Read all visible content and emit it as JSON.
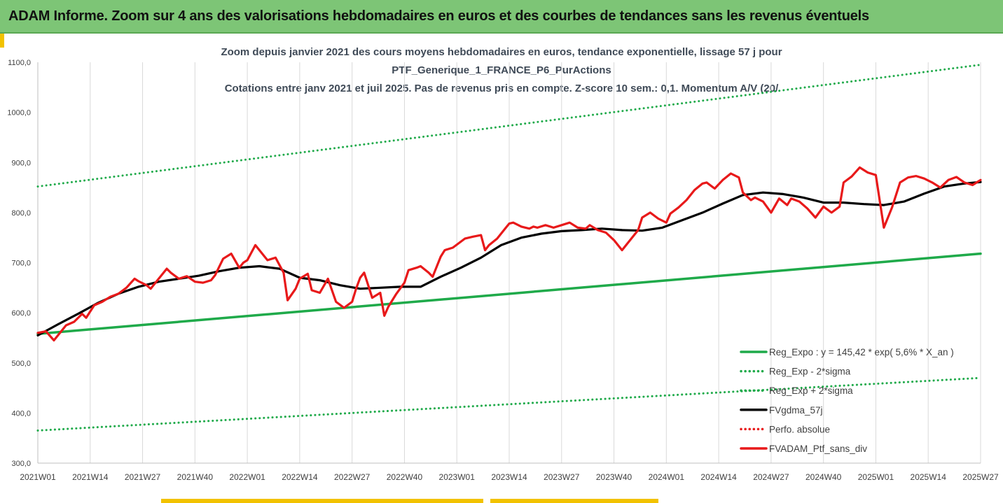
{
  "banner": {
    "title": "ADAM Informe. Zoom sur 4 ans des valorisations hebdomadaires en euros et des courbes de tendances sans les revenus éventuels"
  },
  "chart_data": {
    "type": "line",
    "title_lines": [
      "Zoom depuis janvier 2021 des cours moyens hebdomadaires  en euros, tendance exponentielle, lissage 57 j pour",
      "PTF_Generique_1_FRANCE_P6_PurActions",
      "Cotations entre janv 2021 et juil 2025. Pas de revenus pris en compte. Z-score 10 sem.: 0,1. Momentum  A/V (20/"
    ],
    "ylim": [
      300,
      1100
    ],
    "y_ticks": [
      "300,0",
      "400,0",
      "500,0",
      "600,0",
      "700,0",
      "800,0",
      "900,0",
      "1000,0",
      "1100,0"
    ],
    "x_ticks": [
      "2021W01",
      "2021W14",
      "2021W27",
      "2021W40",
      "2022W01",
      "2022W14",
      "2022W27",
      "2022W40",
      "2023W01",
      "2023W14",
      "2023W27",
      "2023W40",
      "2024W01",
      "2024W14",
      "2024W27",
      "2024W40",
      "2025W01",
      "2025W14",
      "2025W27"
    ],
    "grid": "vertical",
    "legend_position": "right",
    "colors": {
      "green": "#1faa4a",
      "black": "#000000",
      "red": "#e8191a"
    },
    "series": [
      {
        "name": "Reg_Expo : y = 145,42 * exp( 5,6% *  X_an )",
        "style": "solid",
        "color": "#1faa4a",
        "x": [
          0,
          234
        ],
        "values": [
          558,
          718
        ]
      },
      {
        "name": "Reg_Exp - 2*sigma",
        "style": "dotted",
        "color": "#1faa4a",
        "x": [
          0,
          234
        ],
        "values": [
          365,
          470
        ]
      },
      {
        "name": "Reg_Exp + 2*sigma",
        "style": "dotted",
        "color": "#1faa4a",
        "x": [
          0,
          234
        ],
        "values": [
          852,
          1095
        ]
      },
      {
        "name": "FVgdma_57j",
        "style": "solid",
        "color": "#000000",
        "x": [
          0,
          5,
          10,
          15,
          20,
          25,
          30,
          35,
          40,
          45,
          50,
          55,
          60,
          65,
          70,
          75,
          80,
          85,
          90,
          95,
          100,
          105,
          110,
          115,
          120,
          125,
          130,
          135,
          140,
          145,
          150,
          155,
          160,
          165,
          170,
          175,
          180,
          185,
          190,
          195,
          200,
          205,
          210,
          215,
          220,
          225,
          230,
          234
        ],
        "values": [
          555,
          577,
          598,
          620,
          638,
          652,
          662,
          668,
          674,
          683,
          690,
          693,
          688,
          670,
          665,
          655,
          648,
          650,
          652,
          652,
          672,
          690,
          710,
          735,
          750,
          758,
          763,
          765,
          768,
          765,
          764,
          770,
          785,
          800,
          818,
          835,
          840,
          837,
          830,
          820,
          820,
          817,
          815,
          822,
          838,
          852,
          858,
          861
        ]
      },
      {
        "name": "Perfo. absolue",
        "style": "dotted",
        "color": "#e8191a",
        "x": [],
        "values": []
      },
      {
        "name": "FVADAM_Ptf_sans_div",
        "style": "solid",
        "color": "#e8191a",
        "x": [
          0,
          2,
          4,
          7,
          9,
          11,
          12,
          14,
          16,
          18,
          20,
          22,
          24,
          25,
          27,
          28,
          30,
          32,
          33,
          35,
          37,
          39,
          41,
          43,
          44,
          46,
          48,
          50,
          51,
          52,
          54,
          56,
          57,
          59,
          61,
          62,
          64,
          65,
          67,
          68,
          70,
          72,
          74,
          76,
          78,
          79,
          80,
          81,
          82,
          83,
          85,
          86,
          87,
          89,
          91,
          92,
          94,
          95,
          97,
          98,
          100,
          101,
          103,
          105,
          106,
          108,
          110,
          111,
          112,
          114,
          116,
          117,
          118,
          120,
          122,
          123,
          124,
          126,
          128,
          130,
          132,
          134,
          136,
          137,
          139,
          141,
          143,
          145,
          147,
          149,
          150,
          152,
          154,
          156,
          157,
          159,
          161,
          163,
          165,
          166,
          168,
          170,
          172,
          174,
          175,
          177,
          178,
          180,
          182,
          184,
          186,
          187,
          189,
          191,
          193,
          195,
          197,
          199,
          200,
          202,
          204,
          206,
          208,
          210,
          212,
          214,
          216,
          218,
          220,
          222,
          224,
          226,
          228,
          230,
          232,
          234
        ],
        "values": [
          560,
          563,
          545,
          575,
          582,
          598,
          590,
          615,
          622,
          632,
          638,
          650,
          668,
          663,
          655,
          648,
          668,
          688,
          680,
          668,
          673,
          662,
          660,
          665,
          675,
          708,
          718,
          690,
          700,
          705,
          735,
          715,
          705,
          710,
          680,
          625,
          648,
          668,
          678,
          645,
          640,
          668,
          622,
          610,
          622,
          648,
          670,
          680,
          655,
          630,
          640,
          594,
          612,
          638,
          660,
          685,
          690,
          693,
          680,
          672,
          712,
          725,
          730,
          742,
          748,
          752,
          755,
          725,
          735,
          748,
          768,
          778,
          780,
          772,
          768,
          772,
          770,
          775,
          770,
          775,
          780,
          770,
          768,
          775,
          765,
          760,
          745,
          725,
          745,
          765,
          790,
          800,
          788,
          780,
          798,
          810,
          825,
          845,
          858,
          860,
          848,
          865,
          878,
          870,
          840,
          825,
          830,
          822,
          800,
          828,
          815,
          828,
          822,
          808,
          790,
          812,
          800,
          812,
          860,
          872,
          890,
          880,
          875,
          770,
          810,
          860,
          870,
          873,
          868,
          860,
          850,
          865,
          871,
          860,
          855,
          865
        ]
      }
    ],
    "legend": [
      {
        "label": "Reg_Expo : y = 145,42 * exp( 5,6% *  X_an )",
        "style": "solid",
        "color": "#1faa4a"
      },
      {
        "label": "Reg_Exp - 2*sigma",
        "style": "dotted",
        "color": "#1faa4a"
      },
      {
        "label": "Reg_Exp + 2*sigma",
        "style": "dotted",
        "color": "#1faa4a"
      },
      {
        "label": "FVgdma_57j",
        "style": "solid",
        "color": "#000000"
      },
      {
        "label": "Perfo. absolue",
        "style": "dotted",
        "color": "#e8191a"
      },
      {
        "label": "FVADAM_Ptf_sans_div",
        "style": "solid",
        "color": "#e8191a"
      }
    ]
  }
}
